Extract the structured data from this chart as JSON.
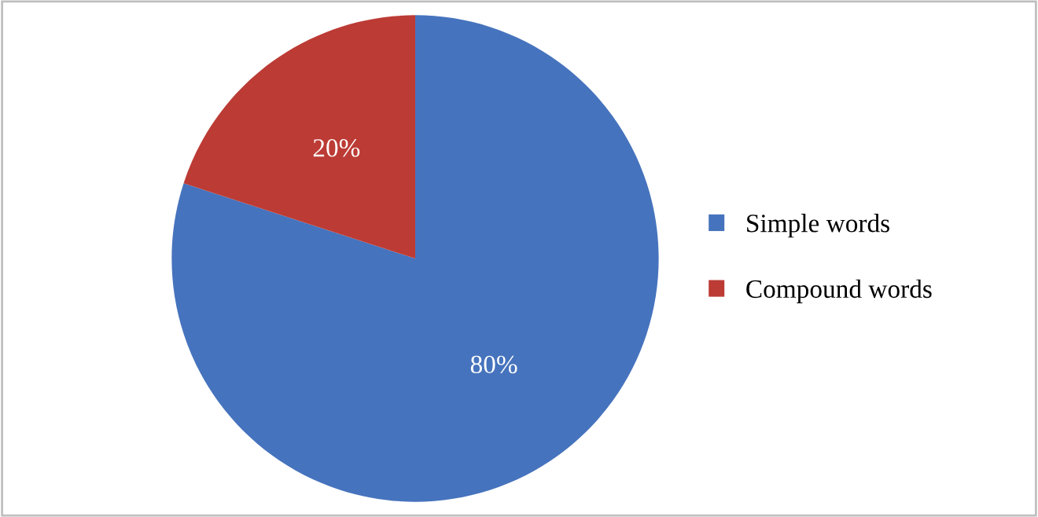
{
  "chart_data": {
    "type": "pie",
    "categories": [
      "Simple words",
      "Compound words"
    ],
    "values": [
      80,
      20
    ],
    "colors": [
      "#4673bd",
      "#bc3b35"
    ],
    "value_labels": [
      "80%",
      "20%"
    ],
    "legend": "right"
  }
}
